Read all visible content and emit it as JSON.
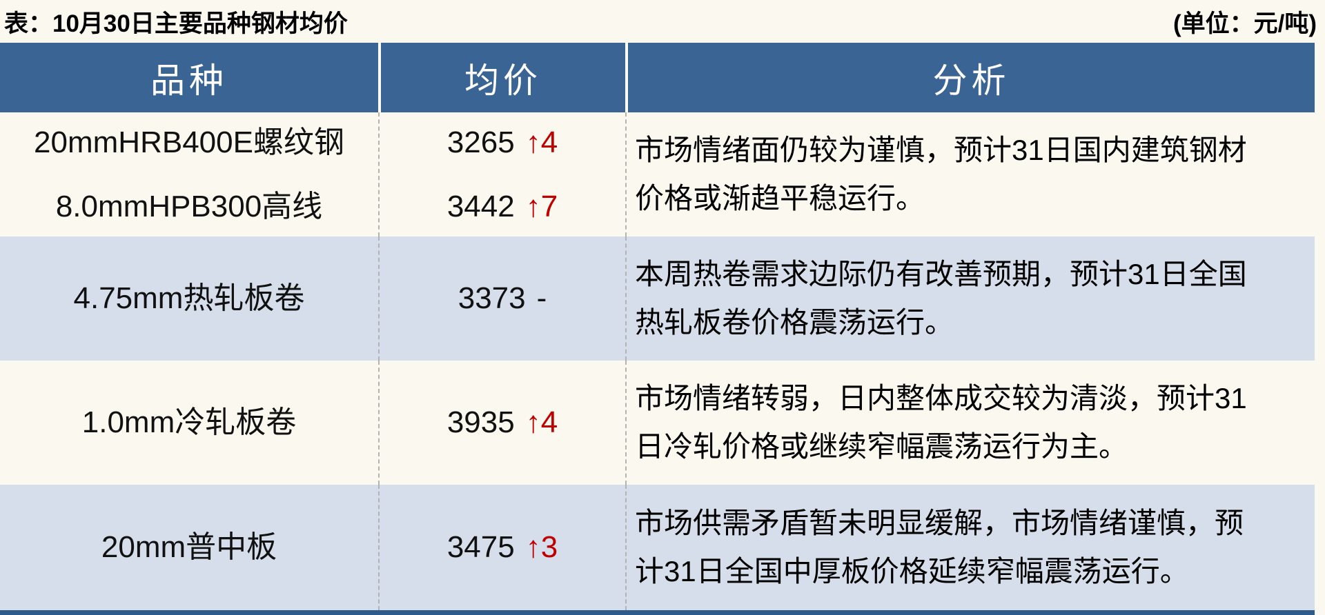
{
  "chart_data": {
    "type": "table",
    "title": "表：10月30日主要品种钢材均价",
    "unit": "(单位：元/吨)",
    "columns": [
      "品种",
      "均价",
      "分析"
    ],
    "row_groups": [
      {
        "entries": [
          {
            "variety": "20mmHRB400E螺纹钢",
            "price": "3265",
            "change": "↑4",
            "change_type": "up"
          },
          {
            "variety": "8.0mmHPB300高线",
            "price": "3442",
            "change": "↑7",
            "change_type": "up"
          }
        ],
        "analysis": "市场情绪面仍较为谨慎，预计31日国内建筑钢材\n价格或渐趋平稳运行。"
      },
      {
        "entries": [
          {
            "variety": "4.75mm热轧板卷",
            "price": "3373",
            "change": "-",
            "change_type": "flat"
          }
        ],
        "analysis": "本周热卷需求边际仍有改善预期，预计31日全国\n热轧板卷价格震荡运行。"
      },
      {
        "entries": [
          {
            "variety": "1.0mm冷轧板卷",
            "price": "3935",
            "change": "↑4",
            "change_type": "up"
          }
        ],
        "analysis": "市场情绪转弱，日内整体成交较为清淡，预计31\n日冷轧价格或继续窄幅震荡运行为主。"
      },
      {
        "entries": [
          {
            "variety": "20mm普中板",
            "price": "3475",
            "change": "↑3",
            "change_type": "up"
          }
        ],
        "analysis": "市场供需矛盾暂未明显缓解，市场情绪谨慎，预\n计31日全国中厚板价格延续窄幅震荡运行。"
      }
    ],
    "colors": {
      "header_bg": "#3A6494",
      "alt_row_bg": "#D5DEEA",
      "base_bg": "#FBF8EF",
      "rise_red": "#C00000",
      "bottom_bar": "#2F5B8C"
    }
  }
}
